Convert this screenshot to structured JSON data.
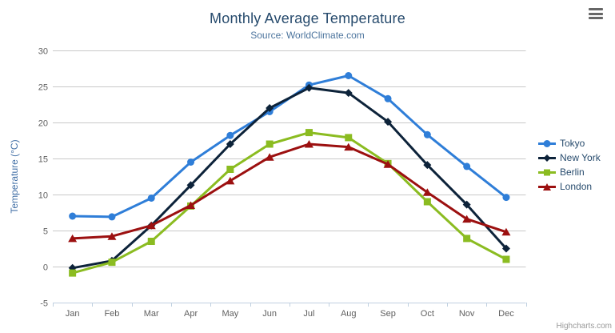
{
  "header": {
    "title": "Monthly Average Temperature",
    "subtitle": "Source: WorldClimate.com"
  },
  "credit": {
    "label": "Highcharts.com"
  },
  "toolbar": {
    "menu_icon": "hamburger-icon"
  },
  "styles": {
    "title_color": "#274b6d",
    "subtitle_color": "#4d759e",
    "axis_label_color": "#606060",
    "y_axis_title_color": "#4572a7",
    "grid_color": "#c8c8c8",
    "axis_line_color": "#c0d0e0",
    "legend_text_color": "#274b6d",
    "credit_color": "#999999",
    "background_color": "#ffffff"
  },
  "chart_data": {
    "type": "line",
    "title": "Monthly Average Temperature",
    "subtitle": "Source: WorldClimate.com",
    "categories": [
      "Jan",
      "Feb",
      "Mar",
      "Apr",
      "May",
      "Jun",
      "Jul",
      "Aug",
      "Sep",
      "Oct",
      "Nov",
      "Dec"
    ],
    "xlabel": "",
    "ylabel": "Temperature (°C)",
    "ylim": [
      -5,
      30
    ],
    "ytick_step": 5,
    "yticks": [
      -5,
      0,
      5,
      10,
      15,
      20,
      25,
      30
    ],
    "grid": true,
    "legend_position": "right",
    "series": [
      {
        "name": "Tokyo",
        "color": "#2f7ed8",
        "marker": "circle",
        "values": [
          7.0,
          6.9,
          9.5,
          14.5,
          18.2,
          21.5,
          25.2,
          26.5,
          23.3,
          18.3,
          13.9,
          9.6
        ]
      },
      {
        "name": "New York",
        "color": "#0d233a",
        "marker": "diamond",
        "values": [
          -0.2,
          0.8,
          5.7,
          11.3,
          17.0,
          22.0,
          24.8,
          24.1,
          20.1,
          14.1,
          8.6,
          2.5
        ]
      },
      {
        "name": "Berlin",
        "color": "#8bbc21",
        "marker": "square",
        "values": [
          -0.9,
          0.6,
          3.5,
          8.4,
          13.5,
          17.0,
          18.6,
          17.9,
          14.3,
          9.0,
          3.9,
          1.0
        ]
      },
      {
        "name": "London",
        "color": "#9c1010",
        "marker": "triangle",
        "values": [
          3.9,
          4.2,
          5.7,
          8.5,
          11.9,
          15.2,
          17.0,
          16.6,
          14.2,
          10.3,
          6.6,
          4.8
        ]
      }
    ]
  }
}
